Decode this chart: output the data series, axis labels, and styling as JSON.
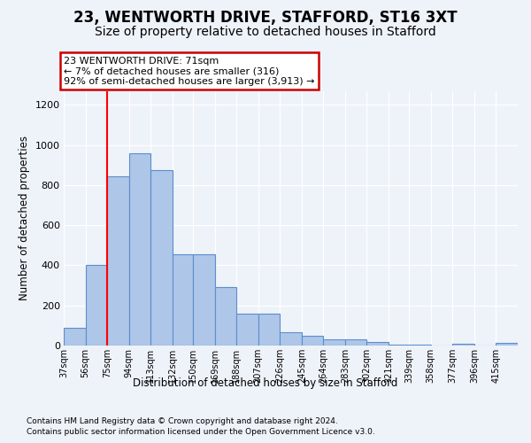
{
  "title1": "23, WENTWORTH DRIVE, STAFFORD, ST16 3XT",
  "title2": "Size of property relative to detached houses in Stafford",
  "xlabel": "Distribution of detached houses by size in Stafford",
  "ylabel": "Number of detached properties",
  "annotation_line1": "23 WENTWORTH DRIVE: 71sqm",
  "annotation_line2": "← 7% of detached houses are smaller (316)",
  "annotation_line3": "92% of semi-detached houses are larger (3,913) →",
  "footnote1": "Contains HM Land Registry data © Crown copyright and database right 2024.",
  "footnote2": "Contains public sector information licensed under the Open Government Licence v3.0.",
  "bar_color": "#aec6e8",
  "bar_edge_color": "#5b8fcc",
  "red_line_x": 75,
  "categories": [
    "37sqm",
    "56sqm",
    "75sqm",
    "94sqm",
    "113sqm",
    "132sqm",
    "150sqm",
    "169sqm",
    "188sqm",
    "207sqm",
    "226sqm",
    "245sqm",
    "264sqm",
    "283sqm",
    "302sqm",
    "321sqm",
    "339sqm",
    "358sqm",
    "377sqm",
    "396sqm",
    "415sqm"
  ],
  "bin_edges": [
    37,
    56,
    75,
    94,
    113,
    132,
    150,
    169,
    188,
    207,
    226,
    245,
    264,
    283,
    302,
    321,
    339,
    358,
    377,
    396,
    415,
    434
  ],
  "values": [
    90,
    400,
    845,
    960,
    875,
    455,
    455,
    290,
    160,
    160,
    65,
    50,
    30,
    30,
    18,
    5,
    3,
    2,
    10,
    2,
    15
  ],
  "ylim": [
    0,
    1270
  ],
  "yticks": [
    0,
    200,
    400,
    600,
    800,
    1000,
    1200
  ],
  "background_color": "#eef2f9",
  "plot_bg_color": "#eef2f9",
  "grid_color": "#ffffff",
  "title1_fontsize": 12,
  "title2_fontsize": 10,
  "annotation_box_color": "#ffffff",
  "annotation_border_color": "#cc0000"
}
